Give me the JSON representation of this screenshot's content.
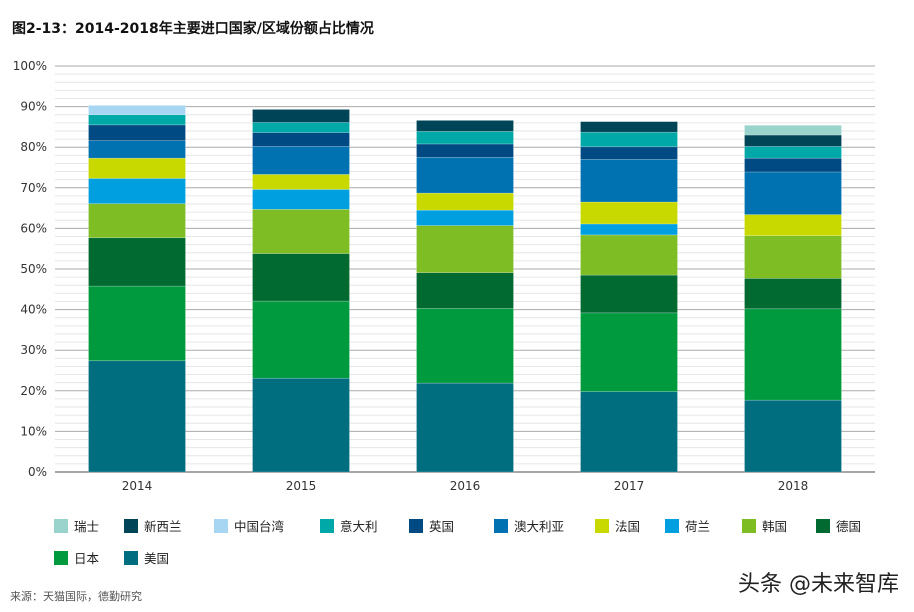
{
  "title": "图2-13：2014-2018年主要进口国家/区域份额占比情况",
  "source": "来源：天猫国际，德勤研究",
  "watermark": "头条 @未来智库",
  "chart_data": {
    "type": "bar",
    "stacked": true,
    "title": "图2-13：2014-2018年主要进口国家/区域份额占比情况",
    "categories": [
      "2014",
      "2015",
      "2016",
      "2017",
      "2018"
    ],
    "ylim": [
      0,
      100
    ],
    "yticks": [
      "0%",
      "10%",
      "20%",
      "30%",
      "40%",
      "50%",
      "60%",
      "70%",
      "80%",
      "90%",
      "100%"
    ],
    "grid": true,
    "legend_position": "bottom",
    "series": [
      {
        "name": "美国",
        "color": "#006E7F",
        "values": [
          27.4,
          23.1,
          21.9,
          19.8,
          17.7
        ]
      },
      {
        "name": "日本",
        "color": "#009A3E",
        "values": [
          18.4,
          19.0,
          18.4,
          19.4,
          22.5
        ]
      },
      {
        "name": "德国",
        "color": "#006A30",
        "values": [
          11.9,
          11.7,
          8.8,
          9.3,
          7.5
        ]
      },
      {
        "name": "韩国",
        "color": "#7FBD25",
        "values": [
          8.4,
          10.9,
          11.6,
          9.9,
          10.5
        ]
      },
      {
        "name": "荷兰",
        "color": "#00A0E0",
        "values": [
          6.2,
          4.9,
          3.8,
          2.7,
          0
        ]
      },
      {
        "name": "法国",
        "color": "#C8D900",
        "values": [
          5.0,
          3.7,
          4.2,
          5.4,
          5.2
        ]
      },
      {
        "name": "澳大利亚",
        "color": "#0072B1",
        "values": [
          4.3,
          6.9,
          8.8,
          10.5,
          10.5
        ]
      },
      {
        "name": "英国",
        "color": "#004A83",
        "values": [
          3.9,
          3.4,
          3.3,
          3.1,
          3.4
        ]
      },
      {
        "name": "意大利",
        "color": "#00A9A8",
        "values": [
          2.5,
          2.5,
          3.1,
          3.6,
          2.9
        ]
      },
      {
        "name": "新西兰",
        "color": "#004457",
        "values": [
          0,
          3.2,
          2.7,
          2.6,
          2.8
        ]
      },
      {
        "name": "中国台湾",
        "color": "#A7D6F3",
        "values": [
          2.3,
          0,
          0,
          0,
          0
        ]
      },
      {
        "name": "瑞士",
        "color": "#99D3CB",
        "values": [
          0,
          0,
          0,
          0,
          2.4
        ]
      }
    ],
    "legend_order": [
      "瑞士",
      "新西兰",
      "中国台湾",
      "意大利",
      "英国",
      "澳大利亚",
      "法国",
      "荷兰",
      "韩国",
      "德国",
      "日本",
      "美国"
    ]
  }
}
